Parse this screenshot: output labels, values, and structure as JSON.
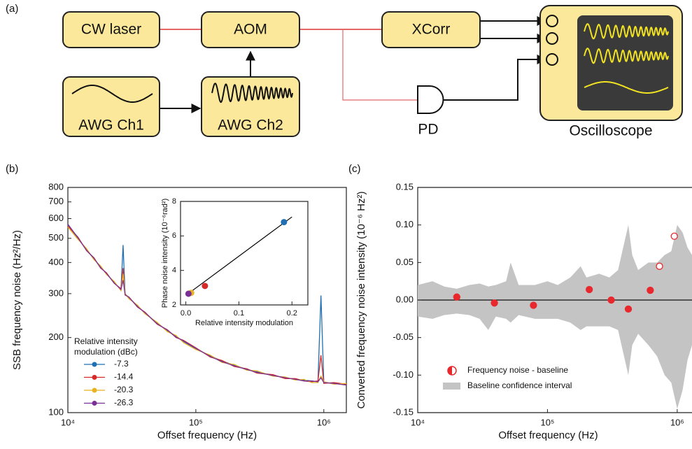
{
  "diagram": {
    "panel_label": "(a)",
    "nodes": [
      {
        "label": "CW laser"
      },
      {
        "label": "AOM"
      },
      {
        "label": "XCorr"
      },
      {
        "label": "AWG Ch1"
      },
      {
        "label": "AWG Ch2"
      },
      {
        "label": "PD"
      },
      {
        "label": "Oscilloscope"
      }
    ]
  },
  "chart_data": [
    {
      "type": "line",
      "panel_label": "(b)",
      "xlabel": "Offset frequency (Hz)",
      "ylabel": "SSB frequency noise (Hz²/Hz)",
      "xscale": "log",
      "yscale": "log",
      "xlim": [
        10000,
        1500000
      ],
      "ylim": [
        100,
        800
      ],
      "xticks": [
        {
          "value": 10000,
          "label": "10⁴"
        },
        {
          "value": 100000,
          "label": "10⁵"
        },
        {
          "value": 1000000,
          "label": "10⁶"
        }
      ],
      "yticks": [
        100,
        200,
        300,
        400,
        500,
        600,
        700,
        800
      ],
      "legend_title": "Relative intensity modulation (dBc)",
      "legend": "lower left",
      "x": [
        10000,
        12000,
        14000,
        16000,
        18000,
        20000,
        23000,
        26000,
        27000,
        28000,
        30000,
        35000,
        40000,
        50000,
        60000,
        70000,
        80000,
        100000,
        130000,
        160000,
        200000,
        250000,
        300000,
        400000,
        500000,
        600000,
        700000,
        800000,
        900000,
        950000,
        1000000,
        1200000,
        1500000
      ],
      "series": [
        {
          "name": "-7.3",
          "color": "#1f6fb2",
          "values": [
            565,
            499,
            450,
            413,
            384,
            361,
            333,
            311,
            470,
            299,
            289,
            268,
            251,
            228,
            213,
            202,
            193,
            180,
            169,
            161,
            155,
            149,
            146,
            141,
            138,
            136,
            135,
            134,
            133,
            295,
            132,
            131,
            130
          ]
        },
        {
          "name": "-14.4",
          "color": "#d62a2a",
          "values": [
            560,
            505,
            446,
            418,
            380,
            364,
            330,
            314,
            380,
            296,
            291,
            265,
            253,
            226,
            215,
            200,
            195,
            182,
            167,
            162,
            153,
            150,
            144,
            142,
            137,
            137,
            134,
            133,
            134,
            170,
            131,
            132,
            130
          ]
        },
        {
          "name": "-20.3",
          "color": "#e8b222",
          "values": [
            555,
            495,
            455,
            410,
            388,
            358,
            336,
            308,
            360,
            301,
            286,
            270,
            249,
            230,
            211,
            204,
            191,
            179,
            170,
            159,
            156,
            148,
            147,
            140,
            139,
            135,
            136,
            132,
            132,
            140,
            133,
            130,
            131
          ]
        },
        {
          "name": "-26.3",
          "color": "#7a2f96",
          "values": [
            570,
            502,
            448,
            416,
            382,
            362,
            331,
            312,
            340,
            297,
            290,
            266,
            252,
            227,
            214,
            201,
            194,
            181,
            168,
            160,
            154,
            149,
            145,
            141,
            138,
            136,
            134,
            134,
            133,
            138,
            132,
            131,
            129
          ]
        }
      ]
    },
    {
      "type": "scatter",
      "inset": true,
      "xlabel": "Relative intensity modulation",
      "ylabel": "Phase noise intensity (10⁻⁶rad²)",
      "xlim": [
        -0.01,
        0.23
      ],
      "ylim": [
        2,
        8
      ],
      "xticks": [
        {
          "value": 0,
          "label": "0.0"
        },
        0.1,
        0.2
      ],
      "yticks": [
        2,
        4,
        6,
        8
      ],
      "x": [
        0.185,
        0.036,
        0.01,
        0.005
      ],
      "values": [
        6.8,
        3.1,
        2.7,
        2.65
      ],
      "colors": [
        "#1f6fb2",
        "#d62a2a",
        "#e8b222",
        "#7a2f96"
      ],
      "fit_line": {
        "x": [
          0,
          0.2
        ],
        "values": [
          2.55,
          7.1
        ],
        "color": "#000000"
      }
    },
    {
      "type": "scatter",
      "panel_label": "(c)",
      "xlabel": "Offset frequency (Hz)",
      "ylabel": "Converted frequency noise intensity (10⁻⁶ Hz²)",
      "xscale": "log",
      "xlim": [
        10000,
        1300000
      ],
      "ylim": [
        -0.15,
        0.15
      ],
      "xticks": [
        {
          "value": 10000,
          "label": "10⁴"
        },
        {
          "value": 100000,
          "label": "10⁵"
        },
        {
          "value": 1000000,
          "label": "10⁶"
        }
      ],
      "yticks": [
        -0.15,
        {
          "value": -0.1,
          "label": "-0.10"
        },
        -0.05,
        {
          "value": 0,
          "label": "0.00"
        },
        0.05,
        {
          "value": 0.1,
          "label": "0.10"
        },
        0.15
      ],
      "zero_line": true,
      "legend": "lower left",
      "series": [
        {
          "name": "Frequency noise - baseline",
          "color": "#e8282d",
          "x": [
            20000,
            39000,
            78000,
            210000,
            310000,
            420000,
            620000,
            730000,
            950000
          ],
          "values": [
            0.004,
            -0.004,
            -0.007,
            0.014,
            0.0,
            -0.012,
            0.013,
            0.045,
            0.085
          ],
          "filled": [
            true,
            true,
            true,
            true,
            true,
            true,
            true,
            false,
            false
          ]
        }
      ],
      "band": {
        "name": "Baseline confidence interval",
        "color": "#c4c4c4",
        "x": [
          10000,
          13000,
          16000,
          20000,
          25000,
          30000,
          35000,
          40000,
          48000,
          52000,
          60000,
          80000,
          100000,
          120000,
          150000,
          180000,
          200000,
          250000,
          300000,
          350000,
          420000,
          450000,
          500000,
          600000,
          700000,
          800000,
          900000,
          1000000,
          1100000,
          1200000,
          1300000
        ],
        "values": [
          0.02,
          0.025,
          0.018,
          0.015,
          0.02,
          0.022,
          0.018,
          0.02,
          0.025,
          0.05,
          0.02,
          0.02,
          0.025,
          0.02,
          0.03,
          0.045,
          0.03,
          0.035,
          0.03,
          0.04,
          0.1,
          0.06,
          0.04,
          0.05,
          0.05,
          0.06,
          0.065,
          0.1,
          0.09,
          0.07,
          0.06
        ],
        "lower": [
          -0.022,
          -0.025,
          -0.02,
          -0.018,
          -0.02,
          -0.025,
          -0.04,
          -0.022,
          -0.025,
          -0.03,
          -0.02,
          -0.025,
          -0.025,
          -0.025,
          -0.03,
          -0.04,
          -0.035,
          -0.035,
          -0.035,
          -0.04,
          -0.1,
          -0.06,
          -0.045,
          -0.06,
          -0.075,
          -0.1,
          -0.11,
          -0.145,
          -0.12,
          -0.08,
          -0.06
        ]
      }
    }
  ]
}
